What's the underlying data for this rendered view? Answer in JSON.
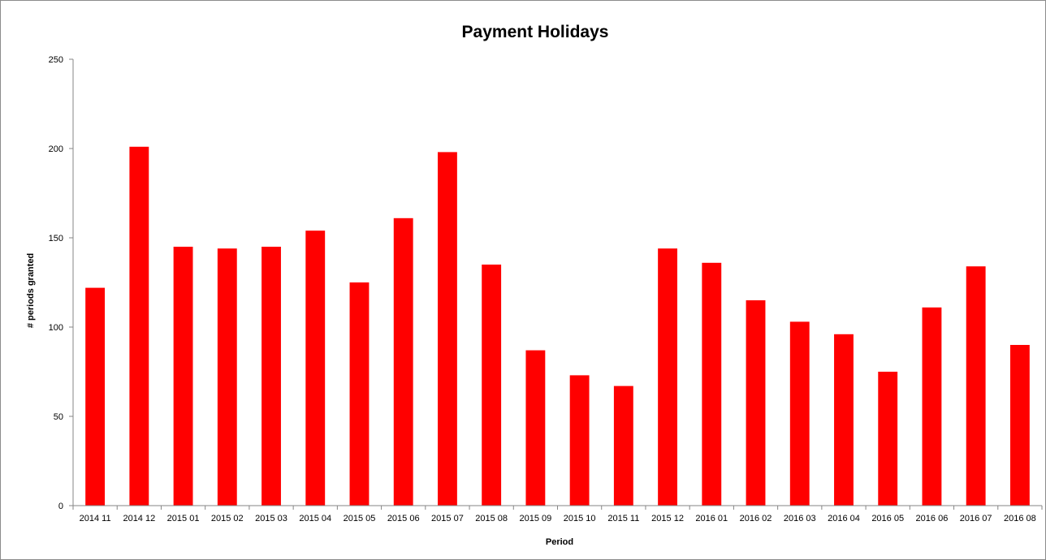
{
  "chart_data": {
    "type": "bar",
    "title": "Payment Holidays",
    "xlabel": "Period",
    "ylabel": "# periods granted",
    "categories": [
      "2014 11",
      "2014 12",
      "2015 01",
      "2015 02",
      "2015 03",
      "2015 04",
      "2015 05",
      "2015 06",
      "2015 07",
      "2015 08",
      "2015 09",
      "2015 10",
      "2015 11",
      "2015 12",
      "2016 01",
      "2016 02",
      "2016 03",
      "2016 04",
      "2016 05",
      "2016 06",
      "2016 07",
      "2016 08"
    ],
    "series": [
      {
        "values": [
          122,
          201,
          145,
          144,
          145,
          154,
          125,
          161,
          198,
          135,
          87,
          73,
          67,
          144,
          136,
          115,
          103,
          96,
          75,
          111,
          134,
          90
        ],
        "color": "#ff0000"
      }
    ],
    "ylim": [
      0,
      250
    ],
    "yticks": [
      0,
      50,
      100,
      150,
      200,
      250
    ],
    "grid": false,
    "legend": "none"
  }
}
